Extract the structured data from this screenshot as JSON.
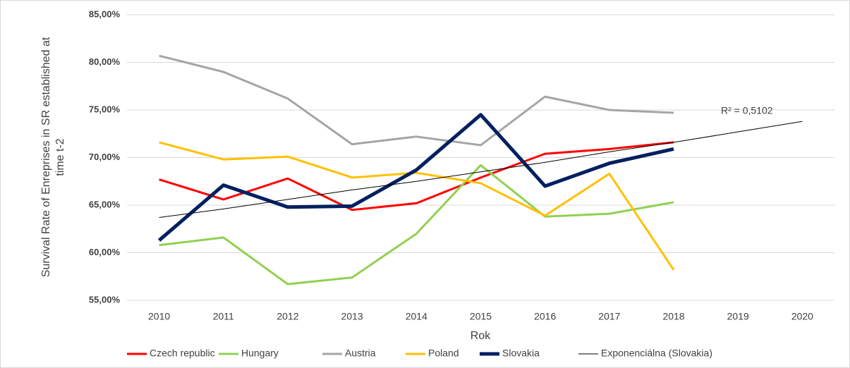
{
  "chart_data": {
    "type": "line",
    "y_label": [
      "Survival Rate of Enreprises in SR established at",
      "time t-2"
    ],
    "x_label": "Rok",
    "annotation": "R² = 0,5102",
    "categories": [
      "2010",
      "2011",
      "2012",
      "2013",
      "2014",
      "2015",
      "2016",
      "2017",
      "2018",
      "2019",
      "2020"
    ],
    "series": [
      {
        "name": "Czech republic",
        "color": "#ff0000",
        "line_width": 3,
        "values": [
          67.7,
          65.6,
          67.8,
          64.5,
          65.2,
          67.9,
          70.4,
          70.9,
          71.6,
          null,
          null
        ]
      },
      {
        "name": "Hungary",
        "color": "#92d050",
        "line_width": 3,
        "values": [
          60.8,
          61.6,
          56.7,
          57.4,
          62.0,
          69.2,
          63.8,
          64.1,
          65.3,
          null,
          null
        ]
      },
      {
        "name": "Austria",
        "color": "#a5a5a5",
        "line_width": 3,
        "values": [
          80.7,
          79.0,
          76.2,
          71.4,
          72.2,
          71.3,
          76.4,
          75.0,
          74.7,
          null,
          null
        ]
      },
      {
        "name": "Poland",
        "color": "#ffc000",
        "line_width": 3,
        "values": [
          71.6,
          69.8,
          70.1,
          67.9,
          68.4,
          67.3,
          63.9,
          68.3,
          58.2,
          null,
          null
        ]
      },
      {
        "name": "Slovakia",
        "color": "#002060",
        "line_width": 5,
        "values": [
          61.3,
          67.1,
          64.8,
          64.9,
          68.7,
          74.5,
          67.0,
          69.4,
          70.9,
          null,
          null
        ]
      },
      {
        "name": "Exponenciálna (Slovakia)",
        "color": "#000000",
        "line_width": 1,
        "values": [
          63.7,
          64.6,
          65.6,
          66.6,
          67.5,
          68.5,
          69.5,
          70.6,
          71.6,
          72.7,
          73.8
        ]
      }
    ],
    "ylim": [
      55,
      85
    ],
    "yticks": [
      {
        "value": 55,
        "label": "55,00%"
      },
      {
        "value": 60,
        "label": "60,00%"
      },
      {
        "value": 65,
        "label": "65,00%"
      },
      {
        "value": 70,
        "label": "70,00%"
      },
      {
        "value": 75,
        "label": "75,00%"
      },
      {
        "value": 80,
        "label": "80,00%"
      },
      {
        "value": 85,
        "label": "85,00%"
      }
    ],
    "grid": true,
    "legend": "bottom"
  }
}
